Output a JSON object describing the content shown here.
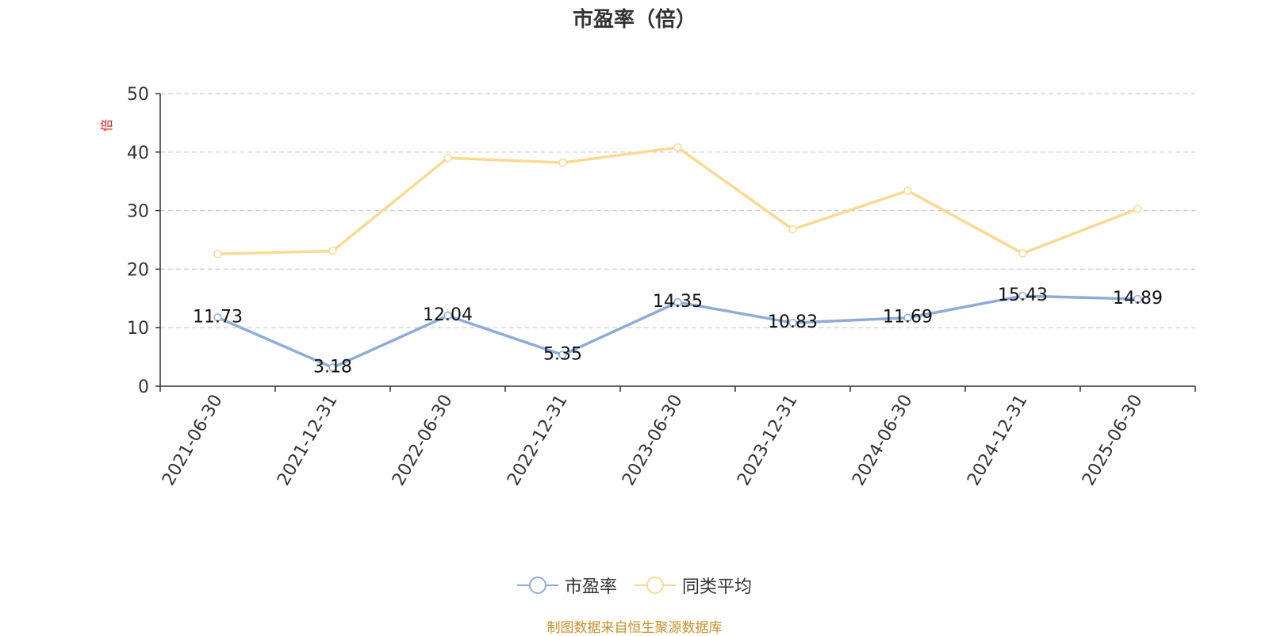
{
  "chart_data": {
    "type": "line",
    "title": "市盈率（倍）",
    "ylabel": "倍",
    "ylim": [
      0,
      50
    ],
    "yticks": [
      0,
      10,
      20,
      30,
      40,
      50
    ],
    "grid": true,
    "categories": [
      "2021-06-30",
      "2021-12-31",
      "2022-06-30",
      "2022-12-31",
      "2023-06-30",
      "2023-12-31",
      "2024-06-30",
      "2024-12-31",
      "2025-06-30"
    ],
    "series": [
      {
        "name": "市盈率",
        "color": "#8eacd9",
        "values": [
          11.73,
          3.18,
          12.04,
          5.35,
          14.35,
          10.83,
          11.69,
          15.43,
          14.89
        ],
        "labels": [
          "11.73",
          "3.18",
          "12.04",
          "5.35",
          "14.35",
          "10.83",
          "11.69",
          "15.43",
          "14.89"
        ]
      },
      {
        "name": "同类平均",
        "color": "#fcd993",
        "values": [
          22.6,
          23.1,
          39.0,
          38.2,
          40.8,
          26.8,
          33.4,
          22.7,
          30.3
        ]
      }
    ],
    "legend_position": "bottom-center"
  },
  "source_text": "制图数据来自恒生聚源数据库",
  "colors": {
    "title": "#333333",
    "axis": "#333333",
    "grid": "#cccccc",
    "ylabel": "#e02020",
    "source": "#c8902a"
  }
}
